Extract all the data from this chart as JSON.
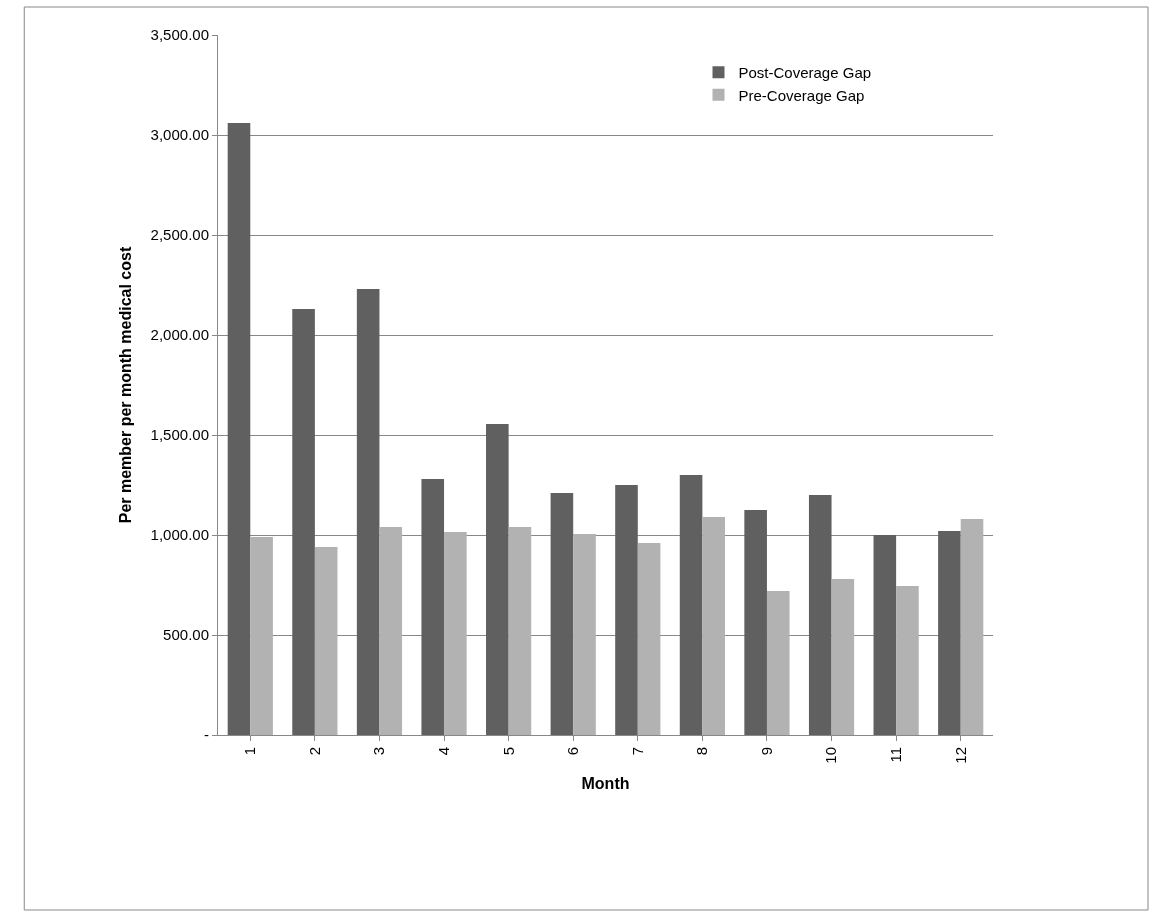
{
  "chart_data": {
    "type": "bar",
    "xlabel": "Month",
    "ylabel": "Per member per month medical cost",
    "categories": [
      "1",
      "2",
      "3",
      "4",
      "5",
      "6",
      "7",
      "8",
      "9",
      "10",
      "11",
      "12"
    ],
    "series": [
      {
        "name": "Post-Coverage Gap",
        "color": "#606060",
        "values": [
          3060,
          2130,
          2230,
          1280,
          1555,
          1210,
          1250,
          1300,
          1125,
          1200,
          1000,
          1020
        ]
      },
      {
        "name": "Pre-Coverage Gap",
        "color": "#b2b2b2",
        "values": [
          990,
          940,
          1040,
          1015,
          1040,
          1005,
          960,
          1090,
          720,
          780,
          745,
          1080
        ]
      }
    ],
    "ylim": [
      0,
      3500
    ],
    "yticks": [
      {
        "value": 0,
        "label": "-"
      },
      {
        "value": 500,
        "label": "500.00"
      },
      {
        "value": 1000,
        "label": "1,000.00"
      },
      {
        "value": 1500,
        "label": "1,500.00"
      },
      {
        "value": 2000,
        "label": "2,000.00"
      },
      {
        "value": 2500,
        "label": "2,500.00"
      },
      {
        "value": 3000,
        "label": "3,000.00"
      },
      {
        "value": 3500,
        "label": "3,500.00"
      }
    ],
    "grid": "y",
    "legend": "top right"
  }
}
